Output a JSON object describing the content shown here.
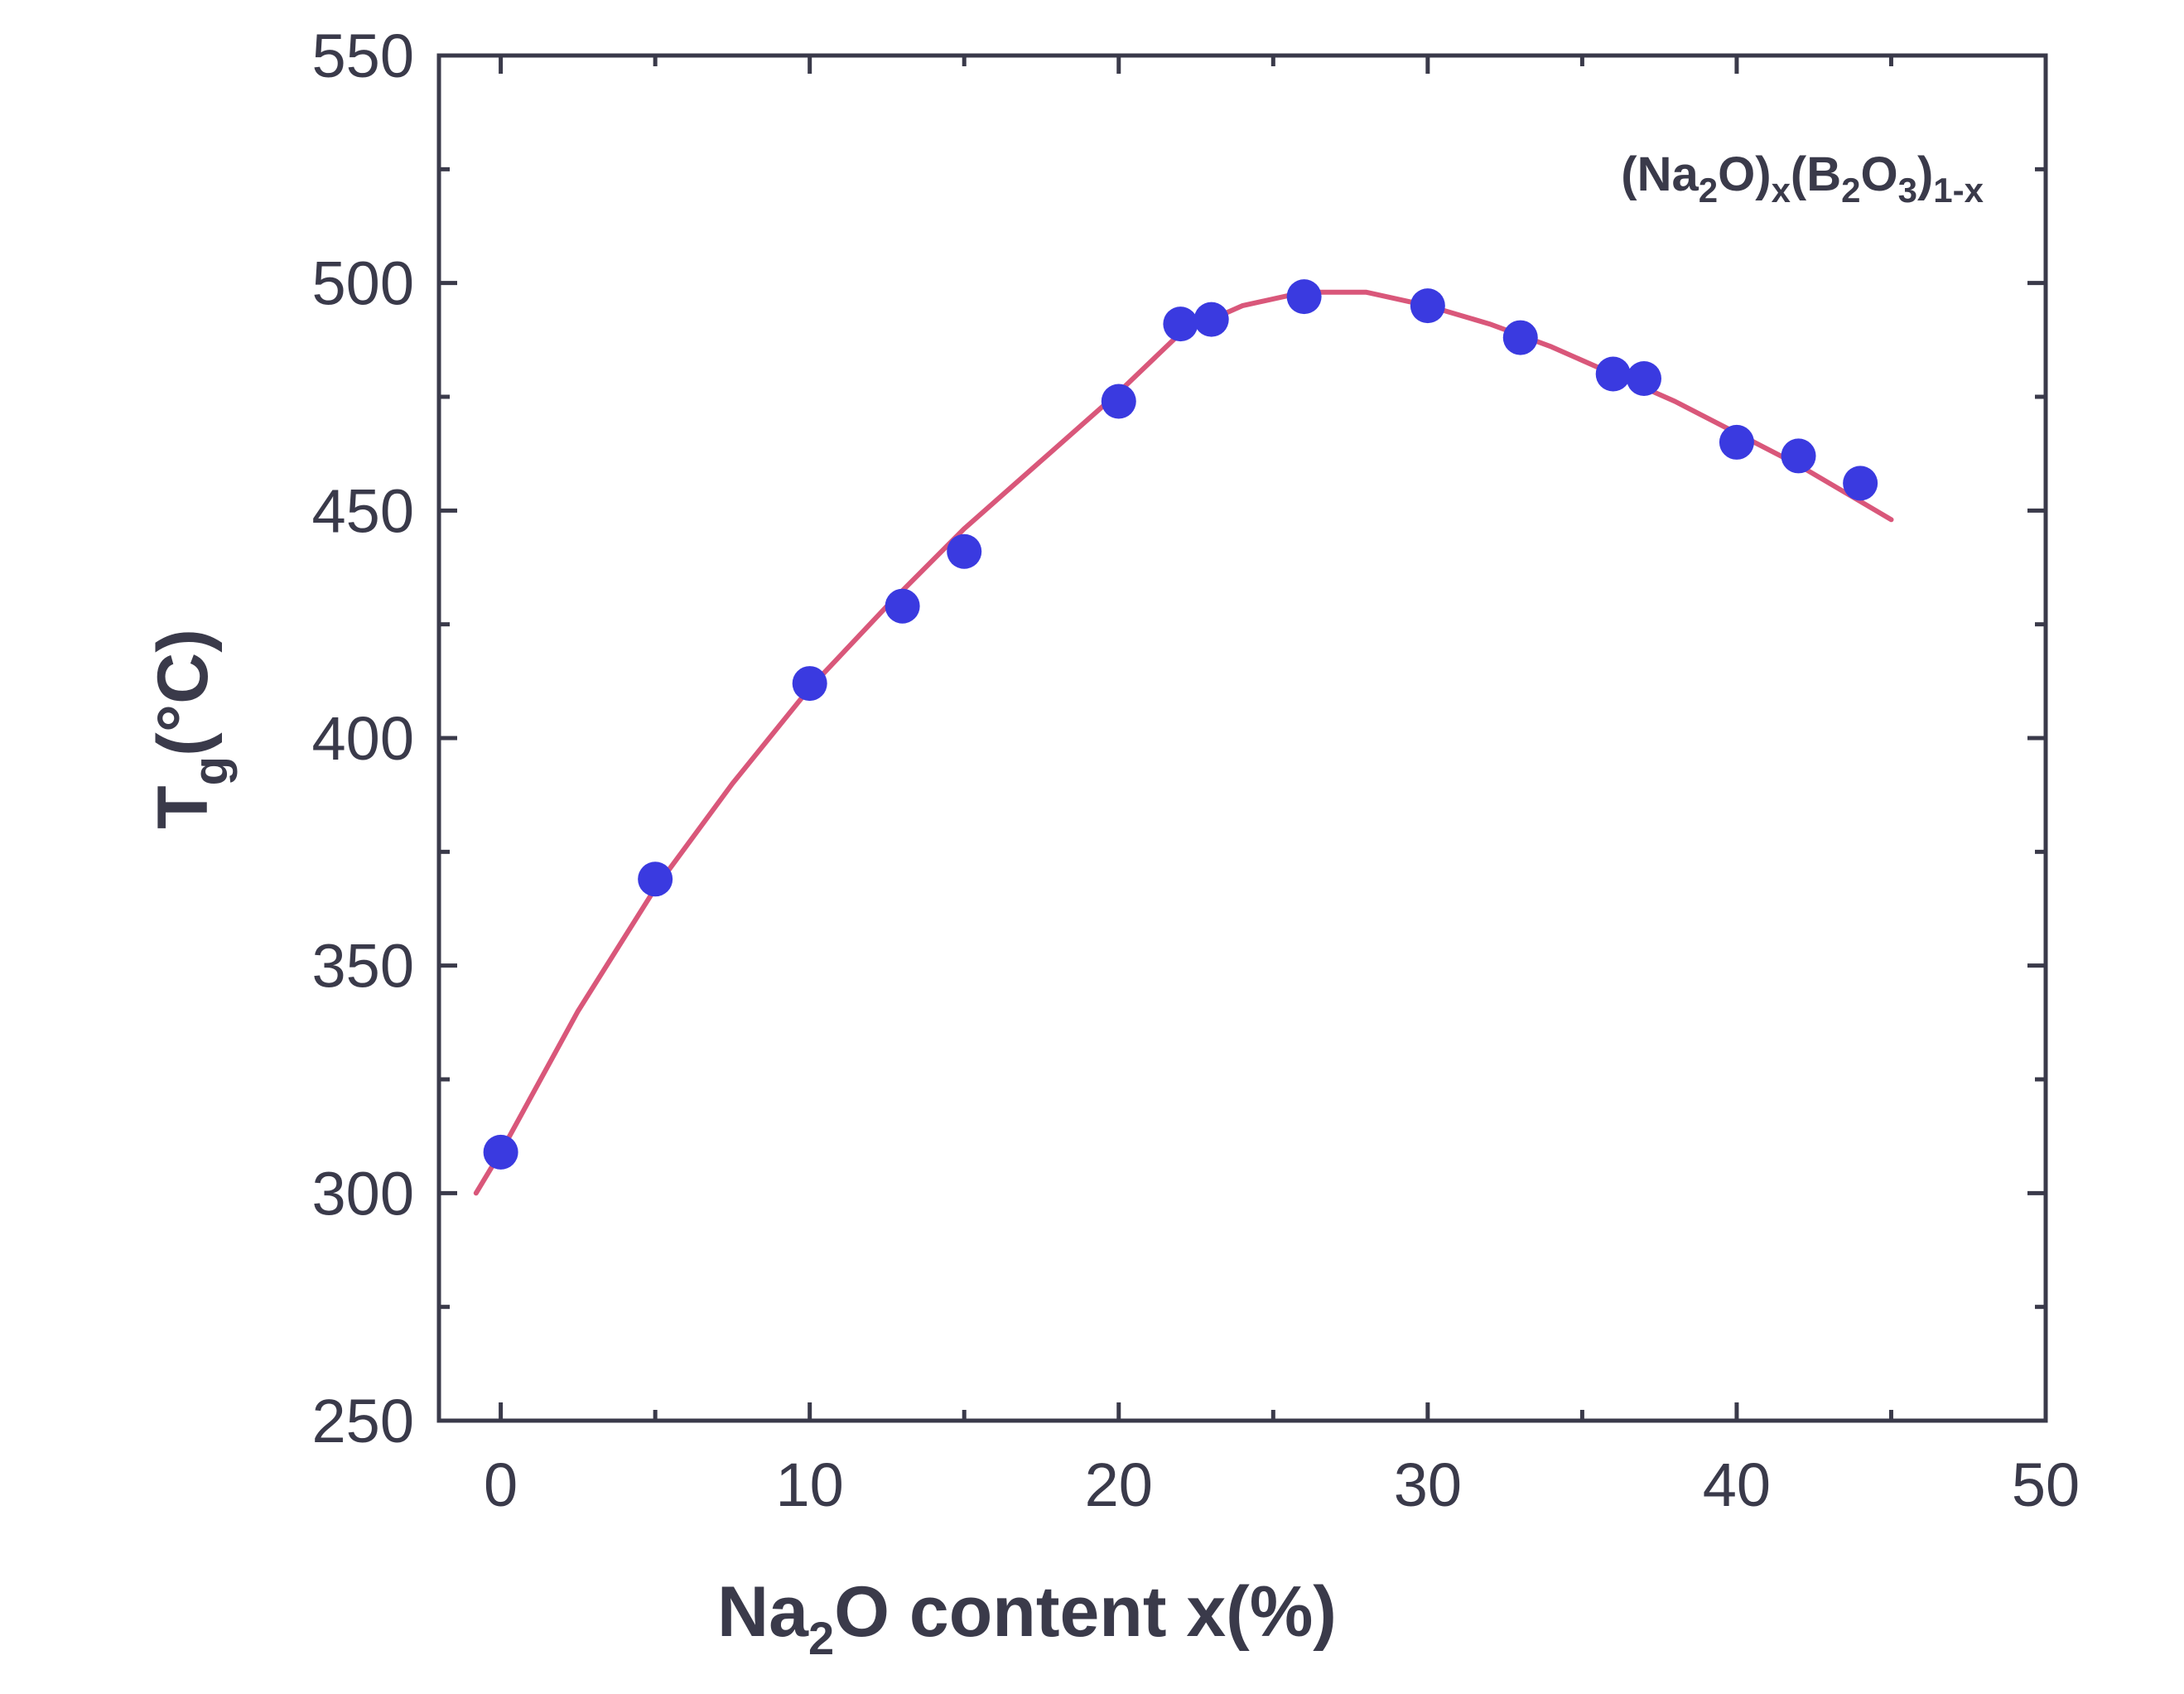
{
  "chart_data": {
    "type": "scatter",
    "xlabel": {
      "pre": "Na",
      "sub": "2",
      "post": "O content x(%)"
    },
    "ylabel": {
      "pre": "T",
      "sub": "g",
      "post": "(°C)"
    },
    "annotation": {
      "p1": "(Na",
      "s1": "2",
      "p2": "O)",
      "s2": "x",
      "p3": "(B",
      "s3": "2",
      "p4": "O",
      "s4": "3",
      "p5": ")",
      "s5": "1-x"
    },
    "xlim": [
      -2,
      50
    ],
    "ylim": [
      250,
      550
    ],
    "x_ticks": [
      0,
      10,
      20,
      30,
      40,
      50
    ],
    "y_ticks": [
      250,
      300,
      350,
      400,
      450,
      500,
      550
    ],
    "grid": false,
    "marker_color": "#3a3ae0",
    "fit_color": "#d9577a",
    "axis_color": "#3a3a4a",
    "series": [
      {
        "type": "scatter",
        "points": [
          [
            0,
            309
          ],
          [
            5,
            369
          ],
          [
            10,
            412
          ],
          [
            13,
            429
          ],
          [
            15,
            441
          ],
          [
            20,
            474
          ],
          [
            22,
            491
          ],
          [
            23,
            492
          ],
          [
            26,
            497
          ],
          [
            30,
            495
          ],
          [
            33,
            488
          ],
          [
            36,
            480
          ],
          [
            37,
            479
          ],
          [
            40,
            465
          ],
          [
            42,
            462
          ],
          [
            44,
            456
          ]
        ]
      },
      {
        "type": "line",
        "points": [
          [
            -0.8,
            300
          ],
          [
            0,
            309
          ],
          [
            2.5,
            340
          ],
          [
            5,
            367
          ],
          [
            7.5,
            390
          ],
          [
            10,
            411
          ],
          [
            12.5,
            429
          ],
          [
            15,
            446
          ],
          [
            17.5,
            461
          ],
          [
            20,
            476
          ],
          [
            22,
            489
          ],
          [
            24,
            495
          ],
          [
            26,
            498
          ],
          [
            28,
            498
          ],
          [
            30,
            495
          ],
          [
            32,
            491
          ],
          [
            34,
            486
          ],
          [
            36,
            480
          ],
          [
            38,
            474
          ],
          [
            40,
            467
          ],
          [
            42,
            460
          ],
          [
            44,
            452
          ],
          [
            45,
            448
          ]
        ]
      }
    ]
  }
}
